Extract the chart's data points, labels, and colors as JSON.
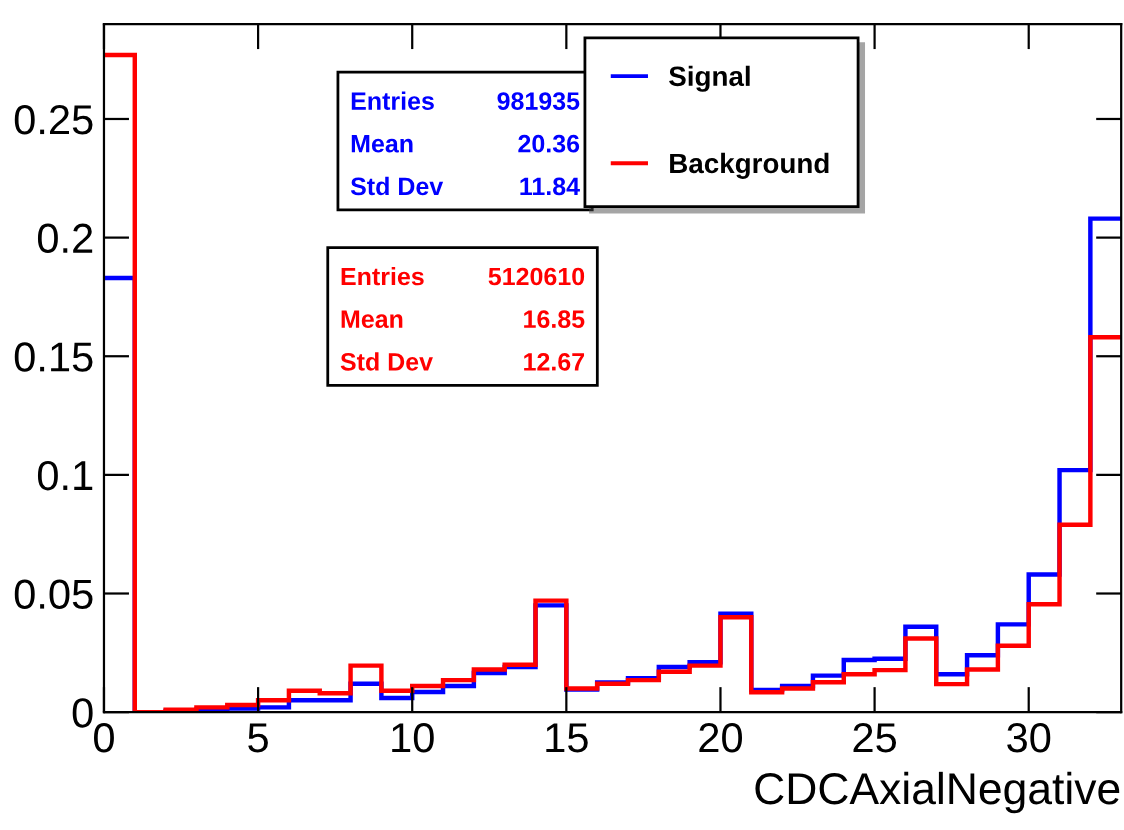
{
  "chart_data": {
    "type": "histogram",
    "xlabel": "CDCAxialNegative",
    "bins": [
      0,
      1,
      2,
      3,
      4,
      5,
      6,
      7,
      8,
      9,
      10,
      11,
      12,
      13,
      14,
      15,
      16,
      17,
      18,
      19,
      20,
      21,
      22,
      23,
      24,
      25,
      26,
      27,
      28,
      29,
      30,
      31,
      32,
      33
    ],
    "series": [
      {
        "name": "Signal",
        "color": "#0000ff",
        "values": [
          0.183,
          0,
          0.0005,
          0.001,
          0.0015,
          0.002,
          0.005,
          0.005,
          0.012,
          0.006,
          0.0085,
          0.011,
          0.0165,
          0.019,
          0.045,
          0.0095,
          0.0125,
          0.0143,
          0.019,
          0.021,
          0.0415,
          0.0093,
          0.011,
          0.0154,
          0.022,
          0.0225,
          0.036,
          0.016,
          0.024,
          0.037,
          0.058,
          0.102,
          0.208
        ]
      },
      {
        "name": "Background",
        "color": "#ff0000",
        "values": [
          0.277,
          0,
          0.001,
          0.002,
          0.003,
          0.005,
          0.009,
          0.008,
          0.0196,
          0.009,
          0.011,
          0.0135,
          0.018,
          0.02,
          0.047,
          0.01,
          0.012,
          0.0135,
          0.017,
          0.0196,
          0.04,
          0.0084,
          0.01,
          0.0126,
          0.016,
          0.0177,
          0.031,
          0.0118,
          0.018,
          0.028,
          0.0455,
          0.079,
          0.158
        ]
      }
    ],
    "annotations": [
      "Entries 981935",
      "Mean 20.36",
      "Std Dev 11.84",
      "Entries 5120610",
      "Mean 16.85",
      "Std Dev 12.67"
    ],
    "xlim": [
      0,
      33
    ],
    "ylim": [
      0,
      0.29
    ],
    "xticks": [
      0,
      5,
      10,
      15,
      20,
      25,
      30
    ],
    "yticks": [
      0,
      0.05,
      0.1,
      0.15,
      0.2,
      0.25
    ],
    "legend": "top right",
    "grid": false
  }
}
